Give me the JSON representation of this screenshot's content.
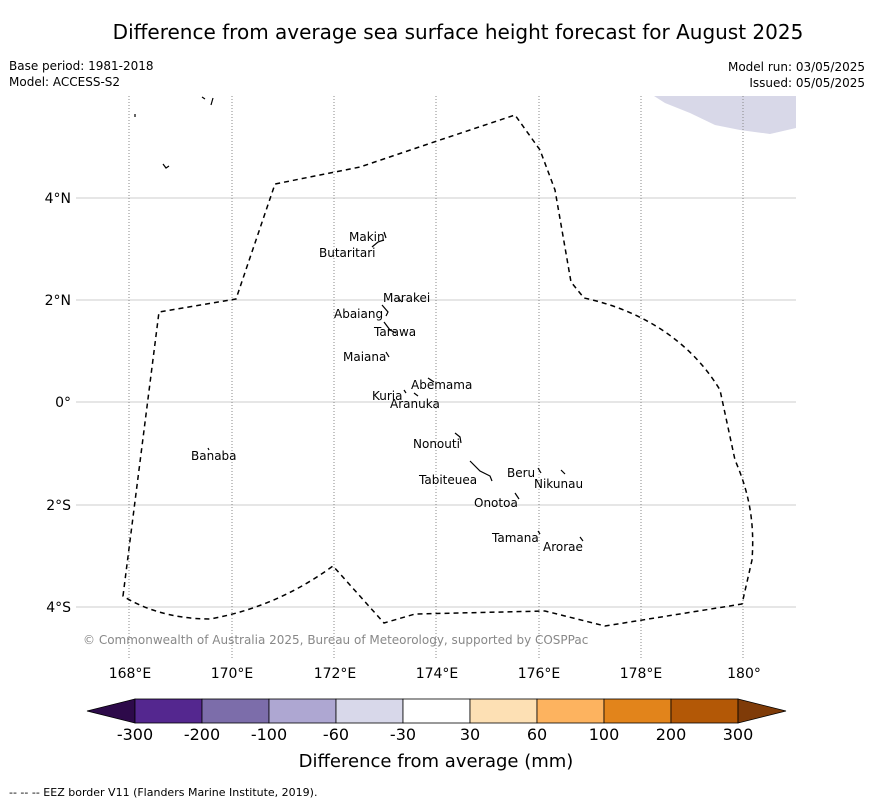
{
  "title": "Difference from average sea surface height forecast for August 2025",
  "meta": {
    "base_period": "Base period: 1981-2018",
    "model": "Model: ACCESS-S2",
    "model_run": "Model run: 03/05/2025",
    "issued": "Issued: 05/05/2025"
  },
  "map": {
    "lon_range": [
      167,
      181
    ],
    "lat_range": [
      -5,
      6
    ],
    "lon_ticks": [
      "168°E",
      "170°E",
      "172°E",
      "174°E",
      "176°E",
      "178°E",
      "180°"
    ],
    "lat_ticks": [
      "4°N",
      "2°N",
      "0°",
      "2°S",
      "4°S"
    ],
    "places": [
      {
        "name": "Makin"
      },
      {
        "name": "Butaritari"
      },
      {
        "name": "Marakei"
      },
      {
        "name": "Abaiang"
      },
      {
        "name": "Tarawa"
      },
      {
        "name": "Maiana"
      },
      {
        "name": "Abemama"
      },
      {
        "name": "Kuria"
      },
      {
        "name": "Aranuka"
      },
      {
        "name": "Nonouti"
      },
      {
        "name": "Banaba"
      },
      {
        "name": "Beru"
      },
      {
        "name": "Nikunau"
      },
      {
        "name": "Tabiteuea"
      },
      {
        "name": "Onotoa"
      },
      {
        "name": "Tamana"
      },
      {
        "name": "Arorae"
      }
    ],
    "copyright": "© Commonwealth of Australia 2025, Bureau of Meteorology, supported by COSPPac",
    "anomaly_patch_color": "#d8d8e8"
  },
  "colorbar": {
    "label": "Difference from average (mm)",
    "ticks": [
      "-300",
      "-200",
      "-100",
      "-60",
      "-30",
      "30",
      "60",
      "100",
      "200",
      "300"
    ],
    "colors": [
      "#2d0a4a",
      "#54278f",
      "#7c6daa",
      "#aea7d2",
      "#d8d8ea",
      "#ffffff",
      "#fde0b4",
      "#fdb35f",
      "#e2841b",
      "#b35806",
      "#7f3b08"
    ]
  },
  "footer": "--  --  -- EEZ border V11 (Flanders Marine Institute, 2019)."
}
